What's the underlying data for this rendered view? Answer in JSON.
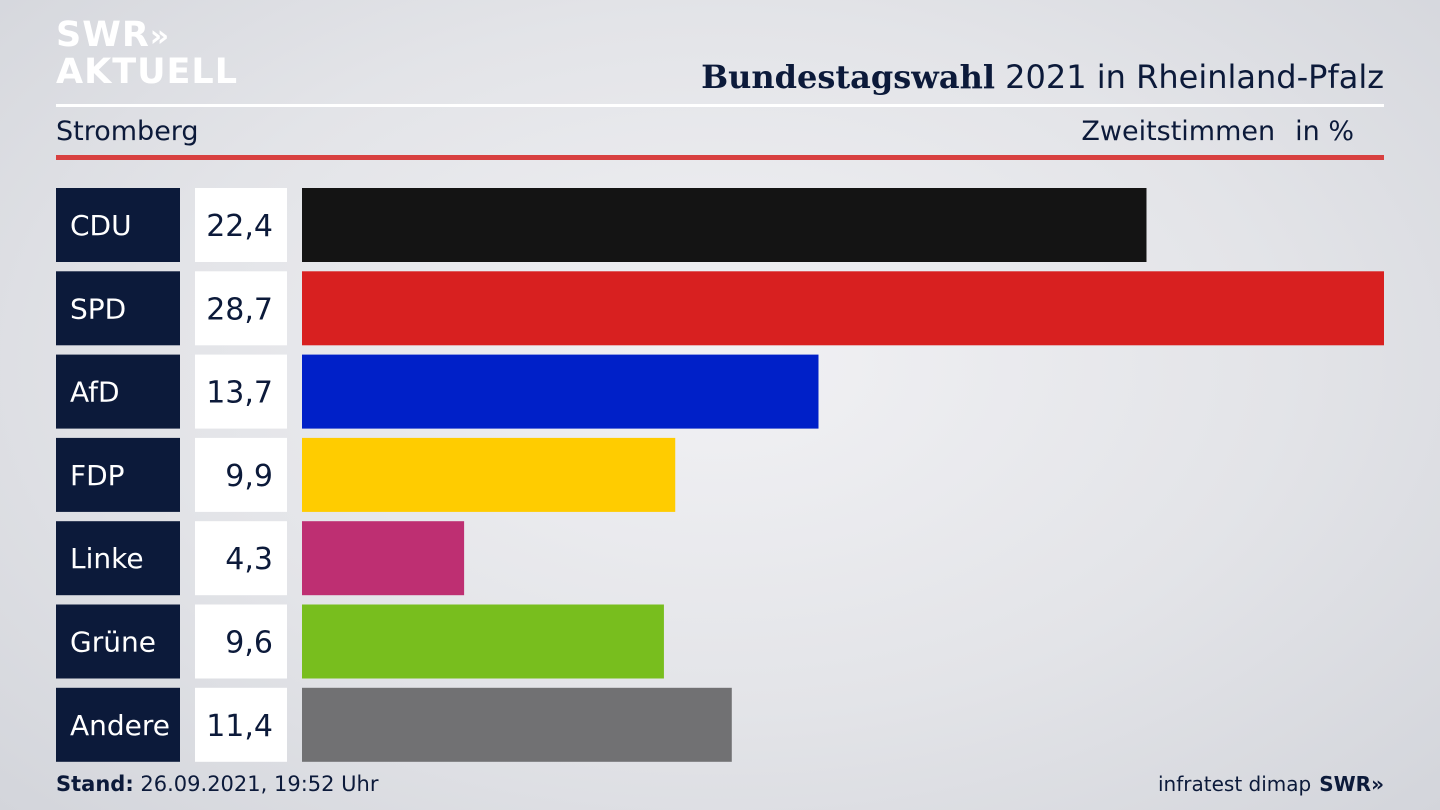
{
  "brand": {
    "line1": "SWR",
    "line1_chevrons": "»",
    "line2": "AKTUELL"
  },
  "header": {
    "title_bold": "Bundestagswahl",
    "title_rest": " 2021 in Rheinland-Pfalz",
    "constituency": "Stromberg",
    "measure": "Zweitstimmen",
    "unit": "in %"
  },
  "chart_data": {
    "type": "bar",
    "orientation": "horizontal",
    "categories": [
      "CDU",
      "SPD",
      "AfD",
      "FDP",
      "Linke",
      "Grüne",
      "Andere"
    ],
    "values": [
      22.4,
      28.7,
      13.7,
      9.9,
      4.3,
      9.6,
      11.4
    ],
    "value_labels": [
      "22,4",
      "28,7",
      "13,7",
      "9,9",
      "4,3",
      "9,6",
      "11,4"
    ],
    "colors": [
      "#141414",
      "#d82020",
      "#0020c8",
      "#ffcc00",
      "#be2f72",
      "#78be1e",
      "#717173"
    ],
    "xlim": [
      0,
      28.7
    ]
  },
  "footer": {
    "stand_label": "Stand:",
    "stand_value": " 26.09.2021, 19:52 Uhr",
    "source": "infratest dimap",
    "source_brand": "SWR»"
  },
  "colors": {
    "label_box": "#0c1a3a",
    "value_box": "#ffffff",
    "accent_red": "#d84040"
  }
}
